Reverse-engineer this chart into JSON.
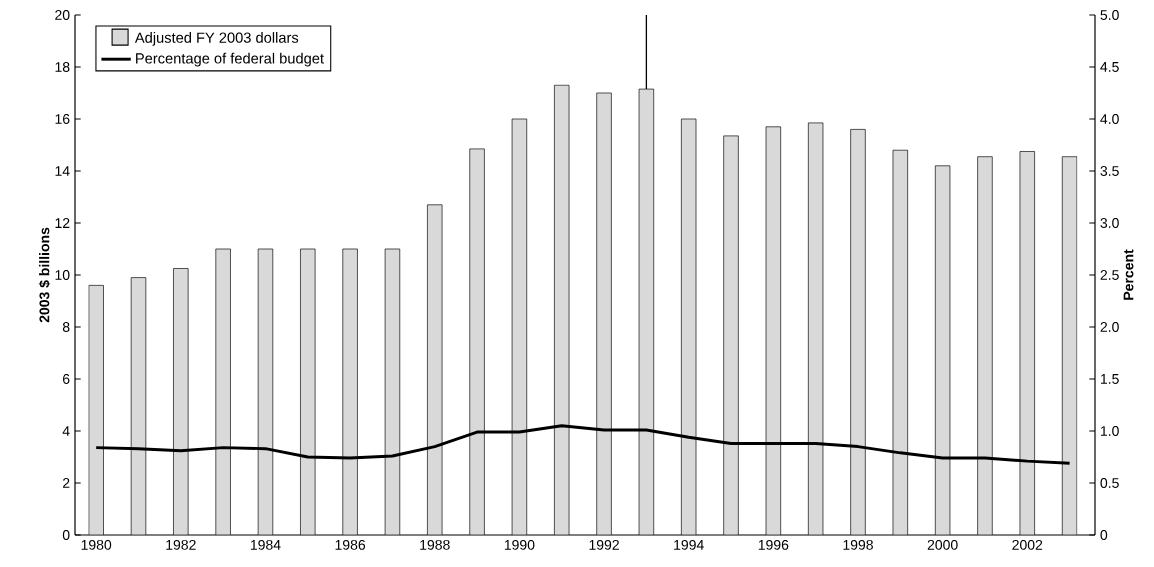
{
  "chart_data": {
    "type": "bar",
    "ylabel": "2003 $ billions",
    "y2label": "Percent",
    "x": [
      1980,
      1981,
      1982,
      1983,
      1984,
      1985,
      1986,
      1987,
      1988,
      1989,
      1990,
      1991,
      1992,
      1993,
      1994,
      1995,
      1996,
      1997,
      1998,
      1999,
      2000,
      2001,
      2002,
      2003
    ],
    "series": [
      {
        "name": "Adjusted FY 2003 dollars",
        "color": "#d9d9d9",
        "values": [
          9.6,
          9.9,
          10.25,
          11.0,
          11.0,
          11.0,
          11.0,
          11.0,
          12.7,
          14.85,
          16.0,
          17.3,
          17.0,
          17.15,
          16.0,
          15.35,
          15.7,
          15.85,
          15.6,
          14.8,
          14.2,
          14.55,
          14.75,
          14.55
        ]
      },
      {
        "name": "Percentage of federal budget",
        "type": "line",
        "axis": "y2",
        "color": "#000000",
        "values": [
          0.84,
          0.83,
          0.81,
          0.84,
          0.83,
          0.75,
          0.74,
          0.76,
          0.85,
          0.99,
          0.99,
          1.05,
          1.01,
          1.01,
          0.94,
          0.88,
          0.88,
          0.88,
          0.85,
          0.79,
          0.74,
          0.74,
          0.71,
          0.69
        ]
      }
    ],
    "xlim": [
      1979.5,
      2003.6
    ],
    "xticks": [
      1980,
      1982,
      1984,
      1986,
      1988,
      1990,
      1992,
      1994,
      1996,
      1998,
      2000,
      2002
    ],
    "ylim": [
      0,
      20
    ],
    "yticks": [
      0,
      2,
      4,
      6,
      8,
      10,
      12,
      14,
      16,
      18,
      20
    ],
    "y2lim": [
      0,
      5
    ],
    "y2ticks": [
      0,
      {
        "value": 0.5,
        "label": "0.5"
      },
      {
        "value": 1,
        "label": "1.0"
      },
      {
        "value": 1.5,
        "label": "1.5"
      },
      {
        "value": 2,
        "label": "2.0"
      },
      {
        "value": 2.5,
        "label": "2.5"
      },
      {
        "value": 3,
        "label": "3.0"
      },
      {
        "value": 3.5,
        "label": "3.5"
      },
      {
        "value": 4,
        "label": "4.0"
      },
      {
        "value": 4.5,
        "label": "4.5"
      },
      {
        "value": 5,
        "label": "5.0"
      }
    ],
    "ref_lines": [
      {
        "axis": "x",
        "value": 1993,
        "color": "#000000"
      }
    ],
    "legend": "top left",
    "grid": false
  }
}
